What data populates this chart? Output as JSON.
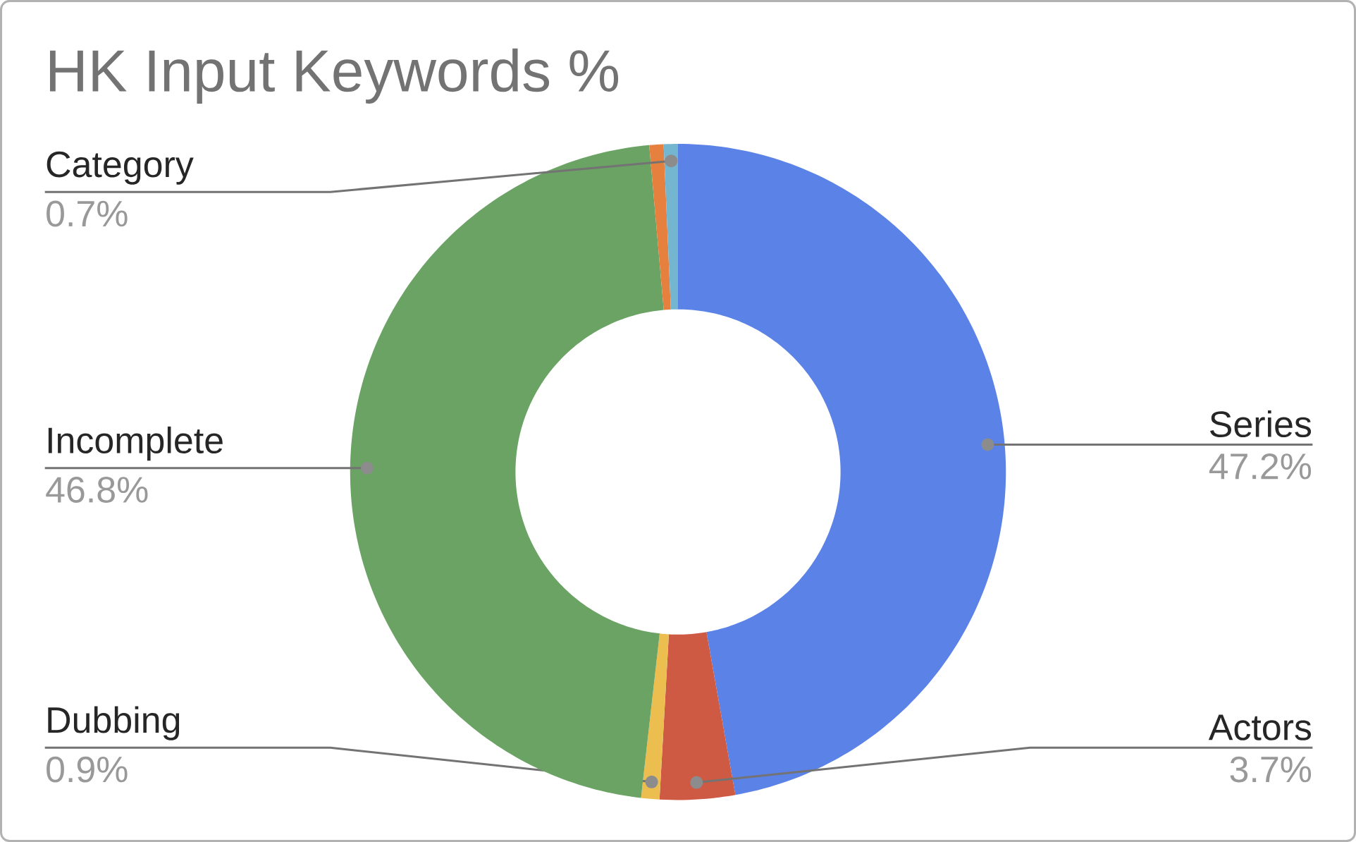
{
  "chart_data": {
    "type": "donut",
    "title": "HK Input Keywords %",
    "categories": [
      "Series",
      "Actors",
      "Dubbing",
      "Incomplete",
      null,
      "Category"
    ],
    "values": [
      47.2,
      3.7,
      0.9,
      46.8,
      0.7,
      0.7
    ],
    "value_labels": [
      "47.2%",
      "3.7%",
      "0.9%",
      "46.8%",
      null,
      "0.7%"
    ],
    "colors": [
      "#5b82e6",
      "#cf5a43",
      "#ecbd4f",
      "#6aa364",
      "#e5803f",
      "#74b6cf"
    ]
  }
}
